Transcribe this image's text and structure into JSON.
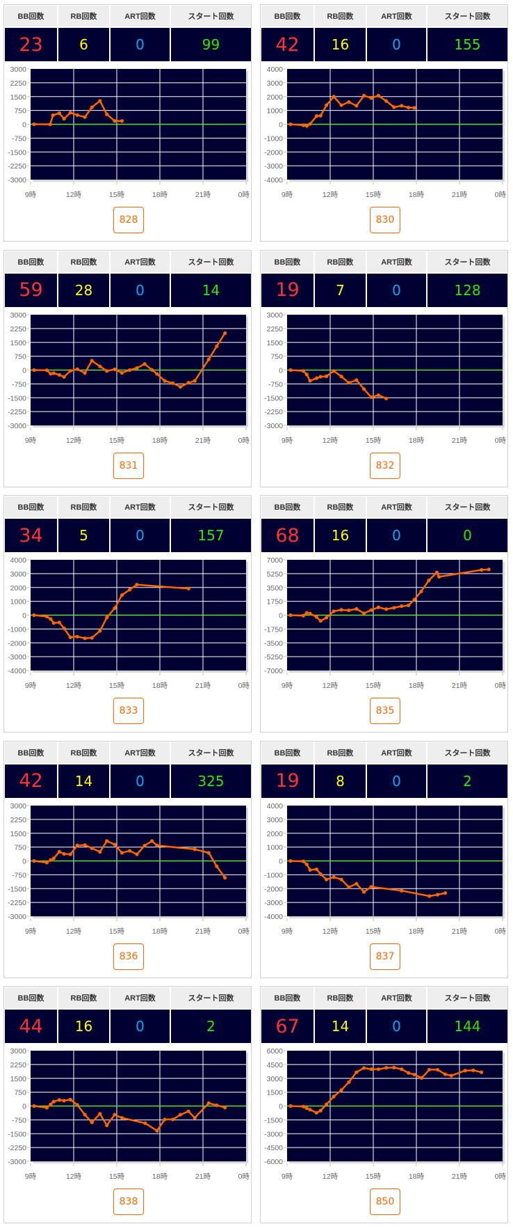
{
  "headers": {
    "bb": "BB回数",
    "rb": "RB回数",
    "art": "ART回数",
    "start": "スタート回数"
  },
  "colors": {
    "bb": "#ff3333",
    "rb": "#ffff00",
    "art": "#00aaff",
    "start": "#22ee00",
    "plot_bg": "#000033",
    "line": "#ff6600",
    "zero_line": "#66dd33"
  },
  "chart_data": [
    {
      "type": "line",
      "machine": "828",
      "bb": "23",
      "rb": "6",
      "art": "0",
      "start": "99",
      "ylim": [
        -3000,
        3000
      ],
      "xlim": [
        9,
        24
      ],
      "yticks": [
        "3000",
        "2250",
        "1500",
        "750",
        "0",
        "-750",
        "-1500",
        "-2250",
        "-3000"
      ],
      "xticks": [
        "9時",
        "12時",
        "15時",
        "18時",
        "21時",
        "0時"
      ],
      "points": [
        [
          9.24,
          0
        ],
        [
          10.37,
          0
        ],
        [
          10.56,
          490
        ],
        [
          11.0,
          600
        ],
        [
          11.33,
          300
        ],
        [
          11.77,
          630
        ],
        [
          12.25,
          500
        ],
        [
          12.78,
          390
        ],
        [
          13.27,
          920
        ],
        [
          13.83,
          1270
        ],
        [
          14.31,
          540
        ],
        [
          14.85,
          180
        ],
        [
          15.36,
          180
        ]
      ]
    },
    {
      "type": "line",
      "machine": "830",
      "bb": "42",
      "rb": "16",
      "art": "0",
      "start": "155",
      "ylim": [
        -4000,
        4000
      ],
      "xlim": [
        9,
        24
      ],
      "yticks": [
        "4000",
        "3000",
        "2000",
        "1000",
        "0",
        "-1000",
        "-2000",
        "-3000",
        "-4000"
      ],
      "xticks": [
        "9時",
        "12時",
        "15時",
        "18時",
        "21時",
        "0時"
      ],
      "points": [
        [
          9.24,
          0
        ],
        [
          10.13,
          -70
        ],
        [
          10.37,
          -120
        ],
        [
          10.6,
          20
        ],
        [
          11.05,
          590
        ],
        [
          11.33,
          620
        ],
        [
          11.74,
          1380
        ],
        [
          12.25,
          2000
        ],
        [
          12.78,
          1380
        ],
        [
          13.3,
          1610
        ],
        [
          13.83,
          1340
        ],
        [
          14.35,
          2070
        ],
        [
          14.86,
          1900
        ],
        [
          15.36,
          2070
        ],
        [
          15.9,
          1680
        ],
        [
          16.44,
          1240
        ],
        [
          16.97,
          1340
        ],
        [
          17.45,
          1210
        ],
        [
          17.86,
          1190
        ]
      ]
    },
    {
      "type": "line",
      "machine": "831",
      "bb": "59",
      "rb": "28",
      "art": "0",
      "start": "14",
      "ylim": [
        -3000,
        3000
      ],
      "xlim": [
        9,
        24
      ],
      "yticks": [
        "3000",
        "2250",
        "1500",
        "750",
        "0",
        "-750",
        "-1500",
        "-2250",
        "-3000"
      ],
      "xticks": [
        "9時",
        "12時",
        "15時",
        "18時",
        "21時",
        "0時"
      ],
      "points": [
        [
          9.24,
          0
        ],
        [
          10.13,
          -10
        ],
        [
          10.4,
          -200
        ],
        [
          10.61,
          -170
        ],
        [
          11.0,
          -260
        ],
        [
          11.33,
          -370
        ],
        [
          11.77,
          -40
        ],
        [
          12.25,
          50
        ],
        [
          12.78,
          -160
        ],
        [
          13.27,
          510
        ],
        [
          13.83,
          200
        ],
        [
          14.31,
          -50
        ],
        [
          14.85,
          40
        ],
        [
          15.36,
          -150
        ],
        [
          15.9,
          0
        ],
        [
          16.4,
          110
        ],
        [
          16.94,
          330
        ],
        [
          17.45,
          10
        ],
        [
          17.8,
          -210
        ],
        [
          18.34,
          -590
        ],
        [
          18.9,
          -710
        ],
        [
          19.43,
          -910
        ],
        [
          19.99,
          -690
        ],
        [
          20.43,
          -590
        ],
        [
          21.4,
          580
        ],
        [
          21.96,
          1290
        ],
        [
          22.53,
          2000
        ]
      ]
    },
    {
      "type": "line",
      "machine": "832",
      "bb": "19",
      "rb": "7",
      "art": "0",
      "start": "128",
      "ylim": [
        -3000,
        3000
      ],
      "xlim": [
        9,
        24
      ],
      "yticks": [
        "3000",
        "2250",
        "1500",
        "750",
        "0",
        "-750",
        "-1500",
        "-2250",
        "-3000"
      ],
      "xticks": [
        "9時",
        "12時",
        "15時",
        "18時",
        "21時",
        "0時"
      ],
      "points": [
        [
          9.24,
          0
        ],
        [
          10.13,
          -50
        ],
        [
          10.37,
          -240
        ],
        [
          10.6,
          -580
        ],
        [
          11.05,
          -440
        ],
        [
          11.33,
          -360
        ],
        [
          11.74,
          -340
        ],
        [
          12.25,
          -50
        ],
        [
          12.78,
          -350
        ],
        [
          13.3,
          -690
        ],
        [
          13.83,
          -540
        ],
        [
          14.35,
          -1030
        ],
        [
          14.86,
          -1470
        ],
        [
          15.36,
          -1360
        ],
        [
          15.9,
          -1540
        ]
      ]
    },
    {
      "type": "line",
      "machine": "833",
      "bb": "34",
      "rb": "5",
      "art": "0",
      "start": "157",
      "ylim": [
        -4000,
        4000
      ],
      "xlim": [
        9,
        24
      ],
      "yticks": [
        "4000",
        "3000",
        "2000",
        "1000",
        "0",
        "-1000",
        "-2000",
        "-3000",
        "-4000"
      ],
      "xticks": [
        "9時",
        "12時",
        "15時",
        "18時",
        "21時",
        "0時"
      ],
      "points": [
        [
          9.24,
          0
        ],
        [
          10.13,
          -100
        ],
        [
          10.4,
          -280
        ],
        [
          10.61,
          -570
        ],
        [
          11.0,
          -530
        ],
        [
          11.33,
          -950
        ],
        [
          11.77,
          -1600
        ],
        [
          12.25,
          -1550
        ],
        [
          12.78,
          -1670
        ],
        [
          13.27,
          -1640
        ],
        [
          13.83,
          -1140
        ],
        [
          14.31,
          -170
        ],
        [
          14.85,
          500
        ],
        [
          15.36,
          1450
        ],
        [
          15.9,
          1840
        ],
        [
          16.4,
          2200
        ],
        [
          20.0,
          1920
        ]
      ]
    },
    {
      "type": "line",
      "machine": "835",
      "bb": "68",
      "rb": "16",
      "art": "0",
      "start": "0",
      "ylim": [
        -7000,
        7000
      ],
      "xlim": [
        9,
        24
      ],
      "yticks": [
        "7000",
        "5250",
        "3500",
        "1750",
        "0",
        "-1750",
        "-3500",
        "-5250",
        "-7000"
      ],
      "xticks": [
        "9時",
        "12時",
        "15時",
        "18時",
        "21時",
        "0時"
      ],
      "points": [
        [
          9.24,
          0
        ],
        [
          10.13,
          -60
        ],
        [
          10.37,
          290
        ],
        [
          10.6,
          200
        ],
        [
          11.05,
          -230
        ],
        [
          11.33,
          -730
        ],
        [
          11.74,
          -320
        ],
        [
          12.25,
          500
        ],
        [
          12.78,
          670
        ],
        [
          13.3,
          610
        ],
        [
          13.83,
          790
        ],
        [
          14.35,
          230
        ],
        [
          14.86,
          640
        ],
        [
          15.36,
          990
        ],
        [
          15.9,
          760
        ],
        [
          16.44,
          930
        ],
        [
          16.97,
          1140
        ],
        [
          17.45,
          1230
        ],
        [
          17.86,
          1960
        ],
        [
          18.34,
          3010
        ],
        [
          18.86,
          4380
        ],
        [
          19.42,
          5400
        ],
        [
          19.58,
          4850
        ],
        [
          22.53,
          5720
        ],
        [
          23.04,
          5780
        ]
      ]
    },
    {
      "type": "line",
      "machine": "836",
      "bb": "42",
      "rb": "14",
      "art": "0",
      "start": "325",
      "ylim": [
        -3000,
        3000
      ],
      "xlim": [
        9,
        24
      ],
      "yticks": [
        "3000",
        "2250",
        "1500",
        "750",
        "0",
        "-750",
        "-1500",
        "-2250",
        "-3000"
      ],
      "xticks": [
        "9時",
        "12時",
        "15時",
        "18時",
        "21時",
        "0時"
      ],
      "points": [
        [
          9.24,
          0
        ],
        [
          10.13,
          -90
        ],
        [
          10.4,
          50
        ],
        [
          10.61,
          140
        ],
        [
          11.0,
          500
        ],
        [
          11.33,
          380
        ],
        [
          11.77,
          360
        ],
        [
          12.25,
          840
        ],
        [
          12.78,
          860
        ],
        [
          13.27,
          690
        ],
        [
          13.83,
          490
        ],
        [
          14.31,
          1080
        ],
        [
          14.85,
          890
        ],
        [
          15.36,
          440
        ],
        [
          15.9,
          550
        ],
        [
          16.4,
          360
        ],
        [
          16.94,
          830
        ],
        [
          17.45,
          1080
        ],
        [
          17.8,
          840
        ],
        [
          20.43,
          630
        ],
        [
          21.4,
          440
        ],
        [
          21.96,
          -290
        ],
        [
          22.53,
          -910
        ]
      ]
    },
    {
      "type": "line",
      "machine": "837",
      "bb": "19",
      "rb": "8",
      "art": "0",
      "start": "2",
      "ylim": [
        -4000,
        4000
      ],
      "xlim": [
        9,
        24
      ],
      "yticks": [
        "4000",
        "3000",
        "2000",
        "1000",
        "0",
        "-1000",
        "-2000",
        "-3000",
        "-4000"
      ],
      "xticks": [
        "9時",
        "12時",
        "15時",
        "18時",
        "21時",
        "0時"
      ],
      "points": [
        [
          9.24,
          0
        ],
        [
          10.13,
          -30
        ],
        [
          10.37,
          -250
        ],
        [
          10.6,
          -650
        ],
        [
          11.05,
          -600
        ],
        [
          11.33,
          -950
        ],
        [
          11.74,
          -1340
        ],
        [
          12.25,
          -1170
        ],
        [
          12.78,
          -1340
        ],
        [
          13.3,
          -1900
        ],
        [
          13.83,
          -1650
        ],
        [
          14.35,
          -2240
        ],
        [
          14.86,
          -1870
        ],
        [
          16.97,
          -2150
        ],
        [
          18.9,
          -2540
        ],
        [
          19.47,
          -2440
        ],
        [
          20.01,
          -2320
        ]
      ]
    },
    {
      "type": "line",
      "machine": "838",
      "bb": "44",
      "rb": "16",
      "art": "0",
      "start": "2",
      "ylim": [
        -3000,
        3000
      ],
      "xlim": [
        9,
        24
      ],
      "yticks": [
        "3000",
        "2250",
        "1500",
        "750",
        "0",
        "-750",
        "-1500",
        "-2250",
        "-3000"
      ],
      "xticks": [
        "9時",
        "12時",
        "15時",
        "18時",
        "21時",
        "0時"
      ],
      "points": [
        [
          9.24,
          0
        ],
        [
          10.13,
          -90
        ],
        [
          10.4,
          90
        ],
        [
          10.61,
          240
        ],
        [
          11.0,
          330
        ],
        [
          11.33,
          290
        ],
        [
          11.77,
          350
        ],
        [
          12.25,
          60
        ],
        [
          12.78,
          -470
        ],
        [
          13.27,
          -890
        ],
        [
          13.83,
          -420
        ],
        [
          14.31,
          -1050
        ],
        [
          14.85,
          -470
        ],
        [
          15.36,
          -640
        ],
        [
          16.97,
          -930
        ],
        [
          17.8,
          -1340
        ],
        [
          18.34,
          -730
        ],
        [
          18.9,
          -730
        ],
        [
          19.43,
          -470
        ],
        [
          19.99,
          -290
        ],
        [
          20.43,
          -640
        ],
        [
          21.4,
          160
        ],
        [
          21.96,
          40
        ],
        [
          22.53,
          -80
        ]
      ]
    },
    {
      "type": "line",
      "machine": "850",
      "bb": "67",
      "rb": "14",
      "art": "0",
      "start": "144",
      "ylim": [
        -6000,
        6000
      ],
      "xlim": [
        9,
        24
      ],
      "yticks": [
        "6000",
        "4500",
        "3000",
        "1500",
        "0",
        "-1500",
        "-3000",
        "-4500",
        "-6000"
      ],
      "xticks": [
        "9時",
        "12時",
        "15時",
        "18時",
        "21時",
        "0時"
      ],
      "points": [
        [
          9.24,
          0
        ],
        [
          10.13,
          -50
        ],
        [
          10.37,
          -250
        ],
        [
          10.6,
          -400
        ],
        [
          11.05,
          -730
        ],
        [
          11.33,
          -500
        ],
        [
          11.74,
          180
        ],
        [
          12.25,
          1030
        ],
        [
          12.78,
          1730
        ],
        [
          13.3,
          2590
        ],
        [
          13.83,
          3660
        ],
        [
          14.35,
          4120
        ],
        [
          14.86,
          3990
        ],
        [
          15.36,
          3990
        ],
        [
          15.9,
          4140
        ],
        [
          16.44,
          4170
        ],
        [
          16.97,
          3990
        ],
        [
          17.45,
          3590
        ],
        [
          17.86,
          3410
        ],
        [
          18.37,
          3040
        ],
        [
          18.9,
          3940
        ],
        [
          19.47,
          3940
        ],
        [
          20.01,
          3440
        ],
        [
          20.43,
          3290
        ],
        [
          21.4,
          3840
        ],
        [
          21.96,
          3870
        ],
        [
          22.53,
          3660
        ]
      ]
    }
  ]
}
